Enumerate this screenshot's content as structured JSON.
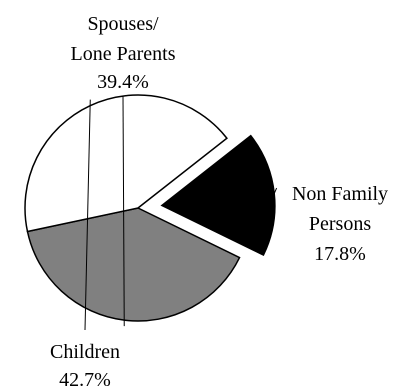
{
  "chart_data": {
    "type": "pie",
    "title": "",
    "slices": [
      {
        "label_lines": [
          "Spouses/",
          "Lone Parents"
        ],
        "value": 39.4,
        "value_label": "39.4%",
        "color": "#808080",
        "exploded": false
      },
      {
        "label_lines": [
          "Non Family",
          "Persons"
        ],
        "value": 17.8,
        "value_label": "17.8%",
        "color": "#000000",
        "exploded": true
      },
      {
        "label_lines": [
          "Children"
        ],
        "value": 42.7,
        "value_label": "42.7%",
        "color": "#ffffff",
        "exploded": false
      }
    ],
    "stroke_color": "#000000",
    "legend": "none"
  }
}
